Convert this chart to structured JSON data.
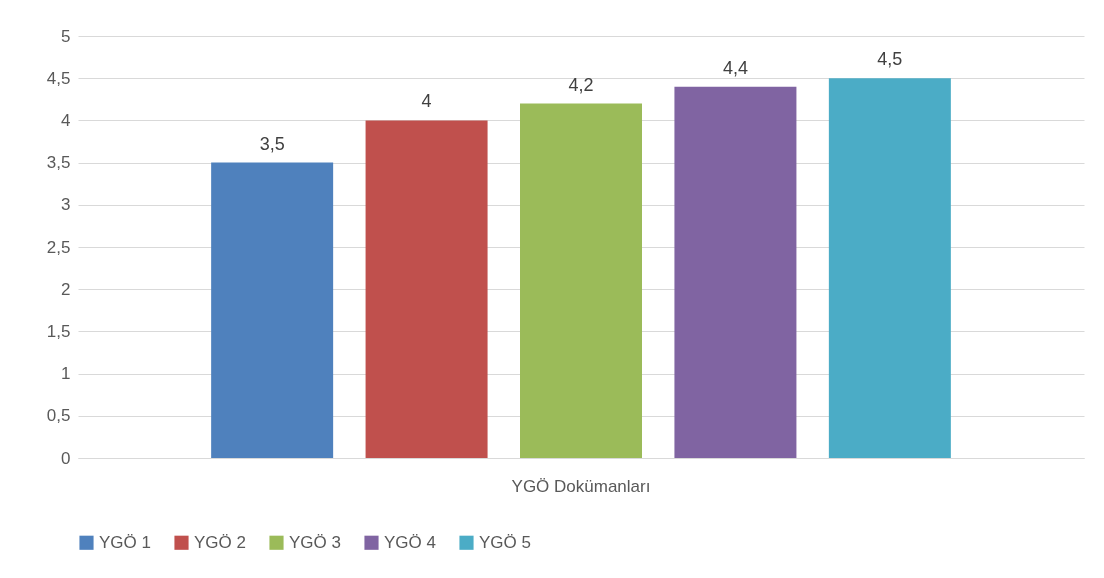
{
  "chart_data": {
    "type": "bar",
    "categories": [
      "YGÖ Dokümanları"
    ],
    "series": [
      {
        "name": "YGÖ 1",
        "color": "#4f81bd",
        "values": [
          3.5
        ],
        "value_labels": [
          "3,5"
        ]
      },
      {
        "name": "YGÖ 2",
        "color": "#c0504d",
        "values": [
          4
        ],
        "value_labels": [
          "4"
        ]
      },
      {
        "name": "YGÖ 3",
        "color": "#9bbb59",
        "values": [
          4.2
        ],
        "value_labels": [
          "4,2"
        ]
      },
      {
        "name": "YGÖ 4",
        "color": "#8064a2",
        "values": [
          4.4
        ],
        "value_labels": [
          "4,4"
        ]
      },
      {
        "name": "YGÖ 5",
        "color": "#4bacc6",
        "values": [
          4.5
        ],
        "value_labels": [
          "4,5"
        ]
      }
    ],
    "ylim": [
      0,
      5
    ],
    "yticks": [
      0,
      {
        "value": 0.5,
        "label": "0,5"
      },
      1,
      {
        "value": 1.5,
        "label": "1,5"
      },
      2,
      {
        "value": 2.5,
        "label": "2,5"
      },
      3,
      {
        "value": 3.5,
        "label": "3,5"
      },
      4,
      {
        "value": 4.5,
        "label": "4,5"
      },
      5
    ],
    "grid": "y",
    "legend": "bottom"
  }
}
